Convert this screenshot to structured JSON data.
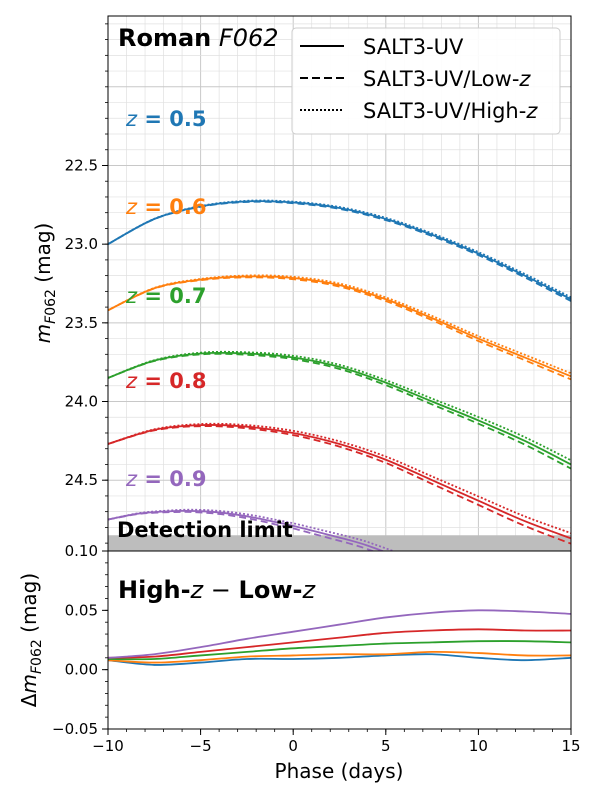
{
  "chart_data": [
    {
      "type": "line",
      "title": "Roman F062",
      "title_parts": {
        "bold": "Roman",
        "italic": "F062"
      },
      "xlim": [
        -10,
        15
      ],
      "ylim": [
        24.95,
        21.55
      ],
      "y_inverted": true,
      "grid": true,
      "ylabel": "m_F062 (mag)",
      "yticks": [
        22.5,
        23.0,
        23.5,
        24.0,
        24.5
      ],
      "ytick_labels": [
        "22.5",
        "23.0",
        "23.5",
        "24.0",
        "24.5"
      ],
      "legend": {
        "position": "top-right",
        "entries": [
          {
            "label": "SALT3-UV",
            "style": "solid"
          },
          {
            "label": "SALT3-UV/Low-z",
            "style": "dashed"
          },
          {
            "label": "SALT3-UV/High-z",
            "style": "dotted"
          }
        ]
      },
      "detection_limit": {
        "label": "Detection limit",
        "mag": 24.85
      },
      "series": [
        {
          "name": "z = 0.5",
          "z_value": "0.5",
          "color": "#1f77b4",
          "x": [
            -10,
            -7.5,
            -5,
            -2.5,
            0,
            2.5,
            5,
            7.5,
            10,
            12.5,
            15
          ],
          "y": [
            23.0,
            22.84,
            22.76,
            22.728,
            22.735,
            22.77,
            22.84,
            22.94,
            23.06,
            23.2,
            23.35
          ],
          "delta": [
            0.008,
            0.004,
            0.006,
            0.009,
            0.009,
            0.01,
            0.012,
            0.013,
            0.01,
            0.008,
            0.01
          ]
        },
        {
          "name": "z = 0.6",
          "z_value": "0.6",
          "color": "#ff7f0e",
          "x": [
            -10,
            -7.5,
            -5,
            -2.5,
            0,
            2.5,
            5,
            7.5,
            10,
            12.5,
            15
          ],
          "y": [
            23.42,
            23.28,
            23.225,
            23.205,
            23.215,
            23.26,
            23.35,
            23.47,
            23.6,
            23.72,
            23.84
          ],
          "delta": [
            0.008,
            0.006,
            0.008,
            0.011,
            0.012,
            0.013,
            0.013,
            0.015,
            0.014,
            0.012,
            0.012
          ]
        },
        {
          "name": "z = 0.7",
          "z_value": "0.7",
          "color": "#2ca02c",
          "x": [
            -10,
            -7.5,
            -5,
            -2.5,
            0,
            2.5,
            5,
            7.5,
            10,
            12.5,
            15
          ],
          "y": [
            23.85,
            23.74,
            23.695,
            23.695,
            23.72,
            23.78,
            23.88,
            24.0,
            24.12,
            24.25,
            24.4
          ],
          "delta": [
            0.009,
            0.009,
            0.012,
            0.015,
            0.018,
            0.02,
            0.022,
            0.023,
            0.024,
            0.024,
            0.023
          ]
        },
        {
          "name": "z = 0.8",
          "z_value": "0.8",
          "color": "#d62728",
          "x": [
            -10,
            -7.5,
            -5,
            -2.5,
            0,
            2.5,
            5,
            7.5,
            10,
            12.5,
            15
          ],
          "y": [
            24.27,
            24.18,
            24.15,
            24.16,
            24.2,
            24.27,
            24.37,
            24.5,
            24.63,
            24.76,
            24.87
          ],
          "delta": [
            0.01,
            0.011,
            0.015,
            0.019,
            0.023,
            0.027,
            0.031,
            0.033,
            0.034,
            0.033,
            0.033
          ]
        },
        {
          "name": "z = 0.9",
          "z_value": "0.9",
          "color": "#9467bd",
          "x": [
            -10,
            -8.5,
            -7.5,
            -6,
            -5,
            -4,
            -3,
            -2,
            -1,
            0,
            1,
            2,
            3,
            4,
            5.5
          ],
          "y": [
            24.75,
            24.715,
            24.703,
            24.695,
            24.697,
            24.705,
            24.72,
            24.74,
            24.765,
            24.79,
            24.82,
            24.85,
            24.88,
            24.915,
            24.98
          ],
          "delta_x": [
            -10,
            -7.5,
            -5,
            -2.5,
            0,
            2.5,
            5,
            7.5,
            10,
            12.5,
            15
          ],
          "delta": [
            0.01,
            0.013,
            0.019,
            0.026,
            0.032,
            0.038,
            0.044,
            0.048,
            0.05,
            0.049,
            0.047
          ]
        }
      ],
      "series_offsets": {
        "low_z": 0.012,
        "high_z": -0.012,
        "offset_scale_with_phase": true
      }
    },
    {
      "type": "line",
      "title": "High-z − Low-z",
      "title_parts": {
        "bold_pre": "High-",
        "italic_1": "z",
        "mid": " − ",
        "bold_mid": "Low-",
        "italic_2": "z"
      },
      "xlabel": "Phase (days)",
      "ylabel": "Δm_F062 (mag)",
      "xlim": [
        -10,
        15
      ],
      "ylim": [
        -0.05,
        0.1
      ],
      "xticks": [
        -10,
        -5,
        0,
        5,
        10,
        15
      ],
      "xtick_labels": [
        "−10",
        "−5",
        "0",
        "5",
        "10",
        "15"
      ],
      "yticks": [
        -0.05,
        0.0,
        0.05,
        0.1
      ],
      "ytick_labels": [
        "−0.05",
        "0.00",
        "0.05",
        "0.10"
      ],
      "grid": false
    }
  ]
}
